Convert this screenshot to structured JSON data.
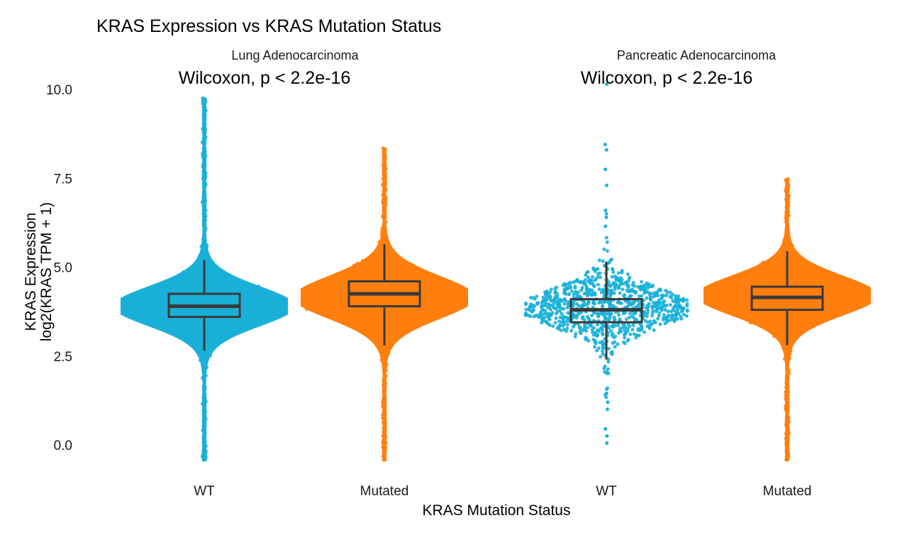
{
  "chart_data": {
    "type": "scatter",
    "subtype": "beeswarm with boxplot, faceted",
    "title": "KRAS Expression vs KRAS Mutation Status",
    "xlabel": "KRAS Mutation Status",
    "ylabel_line1": "KRAS Expression",
    "ylabel_line2": "log2(KRAS TPM + 1)",
    "ylim": [
      -0.6,
      10.2
    ],
    "yticks": [
      "0.0",
      "2.5",
      "5.0",
      "7.5",
      "10.0"
    ],
    "ytick_values": [
      0,
      2.5,
      5,
      7.5,
      10
    ],
    "grid": false,
    "legend": "none",
    "colors": {
      "WT": "#1AB0D8",
      "Mutated": "#FF7F0E",
      "box": "#3a3a3a"
    },
    "facets": [
      {
        "title": "Lung Adenocarcinoma",
        "stat_label": "Wilcoxon, p < 2.2e-16",
        "groups": [
          {
            "category": "WT",
            "box": {
              "q1": 3.6,
              "median": 3.9,
              "q3": 4.25,
              "whisker_low": 2.65,
              "whisker_high": 5.2
            },
            "range": [
              -0.45,
              9.75
            ],
            "mode": 3.9,
            "density": "dense"
          },
          {
            "category": "Mutated",
            "box": {
              "q1": 3.9,
              "median": 4.25,
              "q3": 4.6,
              "whisker_low": 2.8,
              "whisker_high": 5.65
            },
            "range": [
              -0.45,
              8.35
            ],
            "mode": 4.15,
            "density": "dense"
          }
        ]
      },
      {
        "title": "Pancreatic Adenocarcinoma",
        "stat_label": "Wilcoxon, p < 2.2e-16",
        "groups": [
          {
            "category": "WT",
            "box": {
              "q1": 3.45,
              "median": 3.8,
              "q3": 4.1,
              "whisker_low": 2.4,
              "whisker_high": 5.15
            },
            "range": [
              0.05,
              10.15
            ],
            "mode": 3.85,
            "density": "sparse"
          },
          {
            "category": "Mutated",
            "box": {
              "q1": 3.8,
              "median": 4.15,
              "q3": 4.45,
              "whisker_low": 2.8,
              "whisker_high": 5.45
            },
            "range": [
              -0.45,
              7.5
            ],
            "mode": 4.2,
            "density": "dense"
          }
        ]
      }
    ]
  }
}
